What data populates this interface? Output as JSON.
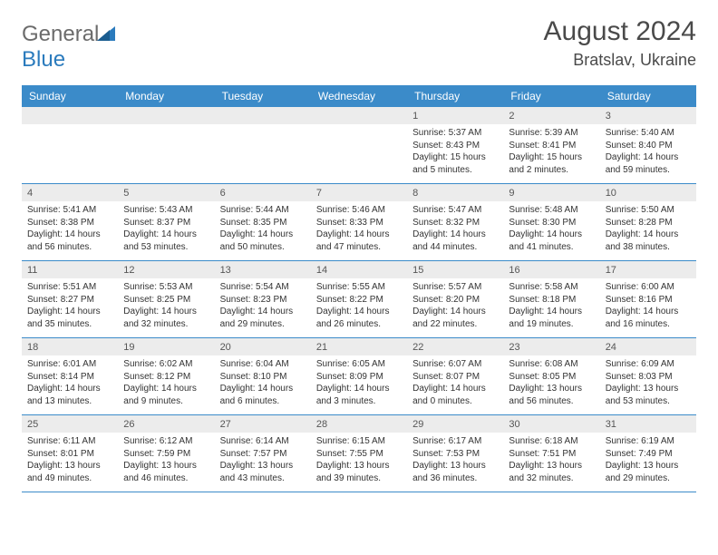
{
  "logo": {
    "text1": "General",
    "text2": "Blue"
  },
  "title": "August 2024",
  "location": "Bratslav, Ukraine",
  "header_color": "#3b8bc9",
  "day_num_bg": "#ececec",
  "border_color": "#3b8bc9",
  "days_of_week": [
    "Sunday",
    "Monday",
    "Tuesday",
    "Wednesday",
    "Thursday",
    "Friday",
    "Saturday"
  ],
  "weeks": [
    [
      null,
      null,
      null,
      null,
      {
        "n": "1",
        "sr": "Sunrise: 5:37 AM",
        "ss": "Sunset: 8:43 PM",
        "dl": "Daylight: 15 hours and 5 minutes."
      },
      {
        "n": "2",
        "sr": "Sunrise: 5:39 AM",
        "ss": "Sunset: 8:41 PM",
        "dl": "Daylight: 15 hours and 2 minutes."
      },
      {
        "n": "3",
        "sr": "Sunrise: 5:40 AM",
        "ss": "Sunset: 8:40 PM",
        "dl": "Daylight: 14 hours and 59 minutes."
      }
    ],
    [
      {
        "n": "4",
        "sr": "Sunrise: 5:41 AM",
        "ss": "Sunset: 8:38 PM",
        "dl": "Daylight: 14 hours and 56 minutes."
      },
      {
        "n": "5",
        "sr": "Sunrise: 5:43 AM",
        "ss": "Sunset: 8:37 PM",
        "dl": "Daylight: 14 hours and 53 minutes."
      },
      {
        "n": "6",
        "sr": "Sunrise: 5:44 AM",
        "ss": "Sunset: 8:35 PM",
        "dl": "Daylight: 14 hours and 50 minutes."
      },
      {
        "n": "7",
        "sr": "Sunrise: 5:46 AM",
        "ss": "Sunset: 8:33 PM",
        "dl": "Daylight: 14 hours and 47 minutes."
      },
      {
        "n": "8",
        "sr": "Sunrise: 5:47 AM",
        "ss": "Sunset: 8:32 PM",
        "dl": "Daylight: 14 hours and 44 minutes."
      },
      {
        "n": "9",
        "sr": "Sunrise: 5:48 AM",
        "ss": "Sunset: 8:30 PM",
        "dl": "Daylight: 14 hours and 41 minutes."
      },
      {
        "n": "10",
        "sr": "Sunrise: 5:50 AM",
        "ss": "Sunset: 8:28 PM",
        "dl": "Daylight: 14 hours and 38 minutes."
      }
    ],
    [
      {
        "n": "11",
        "sr": "Sunrise: 5:51 AM",
        "ss": "Sunset: 8:27 PM",
        "dl": "Daylight: 14 hours and 35 minutes."
      },
      {
        "n": "12",
        "sr": "Sunrise: 5:53 AM",
        "ss": "Sunset: 8:25 PM",
        "dl": "Daylight: 14 hours and 32 minutes."
      },
      {
        "n": "13",
        "sr": "Sunrise: 5:54 AM",
        "ss": "Sunset: 8:23 PM",
        "dl": "Daylight: 14 hours and 29 minutes."
      },
      {
        "n": "14",
        "sr": "Sunrise: 5:55 AM",
        "ss": "Sunset: 8:22 PM",
        "dl": "Daylight: 14 hours and 26 minutes."
      },
      {
        "n": "15",
        "sr": "Sunrise: 5:57 AM",
        "ss": "Sunset: 8:20 PM",
        "dl": "Daylight: 14 hours and 22 minutes."
      },
      {
        "n": "16",
        "sr": "Sunrise: 5:58 AM",
        "ss": "Sunset: 8:18 PM",
        "dl": "Daylight: 14 hours and 19 minutes."
      },
      {
        "n": "17",
        "sr": "Sunrise: 6:00 AM",
        "ss": "Sunset: 8:16 PM",
        "dl": "Daylight: 14 hours and 16 minutes."
      }
    ],
    [
      {
        "n": "18",
        "sr": "Sunrise: 6:01 AM",
        "ss": "Sunset: 8:14 PM",
        "dl": "Daylight: 14 hours and 13 minutes."
      },
      {
        "n": "19",
        "sr": "Sunrise: 6:02 AM",
        "ss": "Sunset: 8:12 PM",
        "dl": "Daylight: 14 hours and 9 minutes."
      },
      {
        "n": "20",
        "sr": "Sunrise: 6:04 AM",
        "ss": "Sunset: 8:10 PM",
        "dl": "Daylight: 14 hours and 6 minutes."
      },
      {
        "n": "21",
        "sr": "Sunrise: 6:05 AM",
        "ss": "Sunset: 8:09 PM",
        "dl": "Daylight: 14 hours and 3 minutes."
      },
      {
        "n": "22",
        "sr": "Sunrise: 6:07 AM",
        "ss": "Sunset: 8:07 PM",
        "dl": "Daylight: 14 hours and 0 minutes."
      },
      {
        "n": "23",
        "sr": "Sunrise: 6:08 AM",
        "ss": "Sunset: 8:05 PM",
        "dl": "Daylight: 13 hours and 56 minutes."
      },
      {
        "n": "24",
        "sr": "Sunrise: 6:09 AM",
        "ss": "Sunset: 8:03 PM",
        "dl": "Daylight: 13 hours and 53 minutes."
      }
    ],
    [
      {
        "n": "25",
        "sr": "Sunrise: 6:11 AM",
        "ss": "Sunset: 8:01 PM",
        "dl": "Daylight: 13 hours and 49 minutes."
      },
      {
        "n": "26",
        "sr": "Sunrise: 6:12 AM",
        "ss": "Sunset: 7:59 PM",
        "dl": "Daylight: 13 hours and 46 minutes."
      },
      {
        "n": "27",
        "sr": "Sunrise: 6:14 AM",
        "ss": "Sunset: 7:57 PM",
        "dl": "Daylight: 13 hours and 43 minutes."
      },
      {
        "n": "28",
        "sr": "Sunrise: 6:15 AM",
        "ss": "Sunset: 7:55 PM",
        "dl": "Daylight: 13 hours and 39 minutes."
      },
      {
        "n": "29",
        "sr": "Sunrise: 6:17 AM",
        "ss": "Sunset: 7:53 PM",
        "dl": "Daylight: 13 hours and 36 minutes."
      },
      {
        "n": "30",
        "sr": "Sunrise: 6:18 AM",
        "ss": "Sunset: 7:51 PM",
        "dl": "Daylight: 13 hours and 32 minutes."
      },
      {
        "n": "31",
        "sr": "Sunrise: 6:19 AM",
        "ss": "Sunset: 7:49 PM",
        "dl": "Daylight: 13 hours and 29 minutes."
      }
    ]
  ]
}
